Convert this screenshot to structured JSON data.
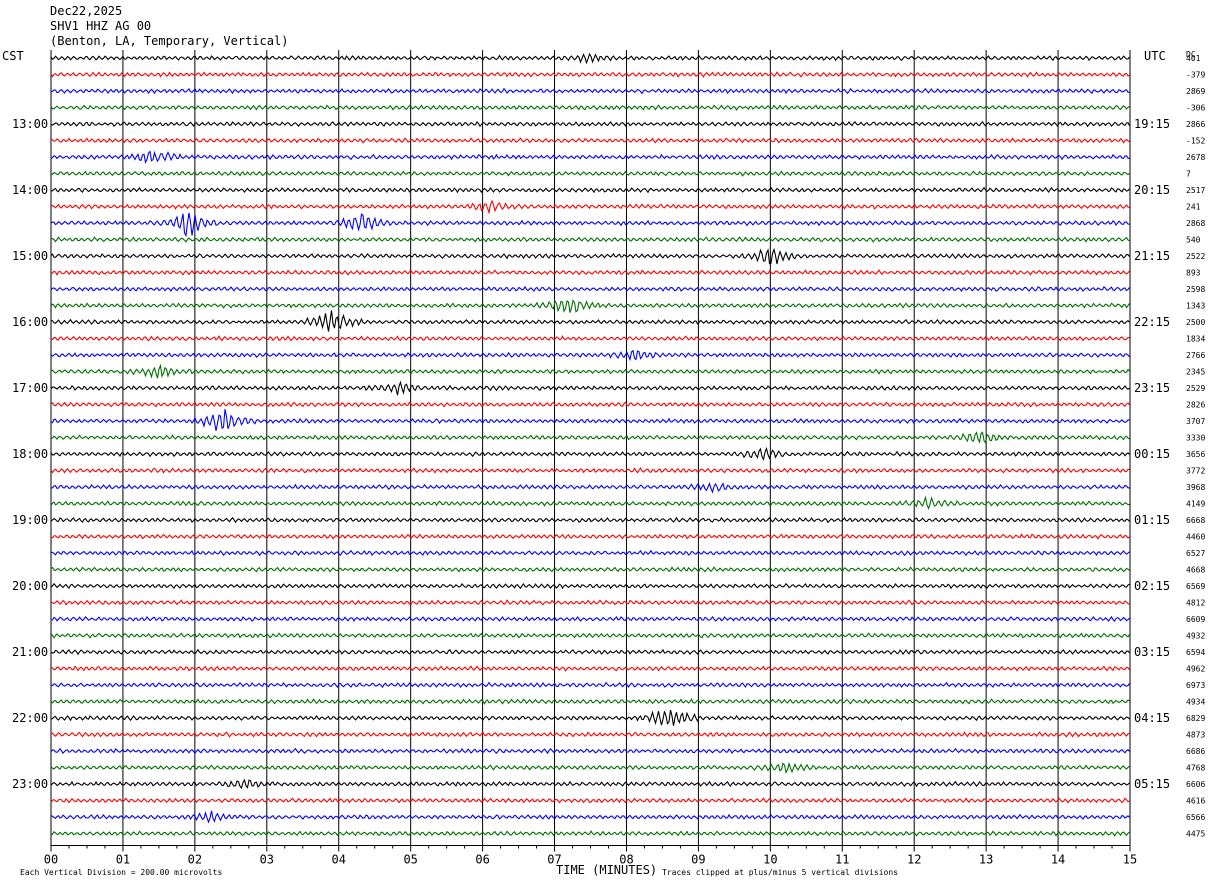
{
  "header": {
    "date": "Dec22,2025",
    "station": "SHV1 HHZ AG 00",
    "location": "(Benton, LA, Temporary, Vertical)"
  },
  "left_tz": "CST",
  "right_tz": "UTC",
  "dc_label": "DC",
  "footer": {
    "scale": "Each Vertical Division =  200.00 microvolts",
    "xlabel": "TIME (MINUTES)",
    "clip": "Traces clipped at plus/minus 5 vertical divisions"
  },
  "chart_data": {
    "type": "line",
    "title": "",
    "xlabel": "TIME (MINUTES)",
    "xlim": [
      0,
      15
    ],
    "x_ticks": [
      "00",
      "01",
      "02",
      "03",
      "04",
      "05",
      "06",
      "07",
      "08",
      "09",
      "10",
      "11",
      "12",
      "13",
      "14",
      "15"
    ],
    "rows_per_hour": 4,
    "trace_colors": [
      "#000000",
      "#ff0000",
      "#0000ff",
      "#007000"
    ],
    "left_hour_labels": [
      "13:00",
      "14:00",
      "15:00",
      "16:00",
      "17:00",
      "18:00",
      "19:00",
      "20:00",
      "21:00",
      "22:00",
      "23:00"
    ],
    "right_hour_labels": [
      "19:15",
      "20:15",
      "21:15",
      "22:15",
      "23:15",
      "00:15",
      "01:15",
      "02:15",
      "03:15",
      "04:15",
      "05:15"
    ],
    "dc_offsets": [
      "401",
      "-379",
      "2869",
      "-306",
      "2866",
      "-152",
      "2678",
      "7",
      "2517",
      "241",
      "2868",
      "540",
      "2522",
      "893",
      "2598",
      "1343",
      "2500",
      "1834",
      "2766",
      "2345",
      "2529",
      "2826",
      "3707",
      "3330",
      "3656",
      "3772",
      "3968",
      "4149",
      "6668",
      "4460",
      "6527",
      "4668",
      "6569",
      "4812",
      "6609",
      "4932",
      "6594",
      "4962",
      "6973",
      "4934",
      "6829",
      "4873",
      "6686",
      "4768",
      "6606",
      "4616",
      "6566",
      "4475"
    ],
    "events": [
      {
        "row": 0,
        "minute": 7.5,
        "amplitude": 1.0
      },
      {
        "row": 6,
        "minute": 1.4,
        "amplitude": 1.6
      },
      {
        "row": 9,
        "minute": 6.1,
        "amplitude": 1.2
      },
      {
        "row": 10,
        "minute": 1.9,
        "amplitude": 3.0
      },
      {
        "row": 10,
        "minute": 4.3,
        "amplitude": 2.2
      },
      {
        "row": 12,
        "minute": 10.0,
        "amplitude": 2.0
      },
      {
        "row": 15,
        "minute": 7.2,
        "amplitude": 2.2
      },
      {
        "row": 16,
        "minute": 3.9,
        "amplitude": 3.0
      },
      {
        "row": 18,
        "minute": 8.1,
        "amplitude": 1.2
      },
      {
        "row": 19,
        "minute": 1.5,
        "amplitude": 1.4
      },
      {
        "row": 20,
        "minute": 4.8,
        "amplitude": 1.2
      },
      {
        "row": 22,
        "minute": 2.4,
        "amplitude": 3.4
      },
      {
        "row": 23,
        "minute": 12.9,
        "amplitude": 1.6
      },
      {
        "row": 24,
        "minute": 9.9,
        "amplitude": 1.2
      },
      {
        "row": 26,
        "minute": 9.2,
        "amplitude": 1.0
      },
      {
        "row": 27,
        "minute": 12.2,
        "amplitude": 1.0
      },
      {
        "row": 40,
        "minute": 8.6,
        "amplitude": 2.8
      },
      {
        "row": 43,
        "minute": 10.2,
        "amplitude": 1.0
      },
      {
        "row": 44,
        "minute": 2.7,
        "amplitude": 1.0
      },
      {
        "row": 46,
        "minute": 2.2,
        "amplitude": 1.0
      }
    ]
  }
}
